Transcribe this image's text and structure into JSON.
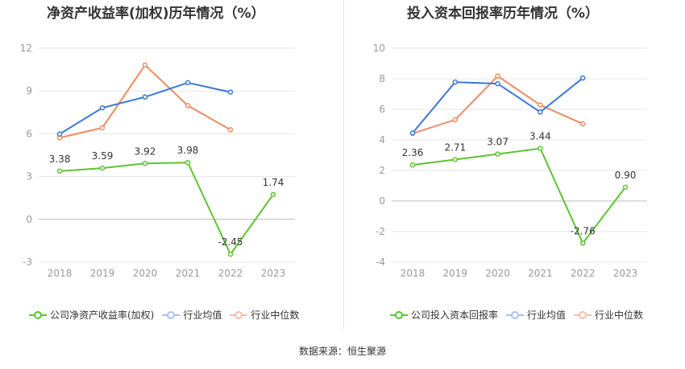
{
  "source": "数据来源：恒生聚源",
  "colors": {
    "company": "#5ec232",
    "avg": "#3b78d8",
    "median": "#ef8a62",
    "grid": "#e6e6e6",
    "axis_text": "#999999",
    "label_text": "#333333"
  },
  "chart_data": [
    {
      "type": "line",
      "title": "净资产收益率(加权)历年情况（%）",
      "categories": [
        "2018",
        "2019",
        "2020",
        "2021",
        "2022",
        "2023"
      ],
      "yticks": [
        "12",
        "9",
        "6",
        "3",
        "0",
        "-3"
      ],
      "ylim": [
        -3,
        12
      ],
      "series": [
        {
          "name": "公司净资产收益率(加权)",
          "values": [
            3.38,
            3.59,
            3.92,
            3.98,
            -2.45,
            1.74
          ],
          "labels": [
            "3.38",
            "3.59",
            "3.92",
            "3.98",
            "-2.45",
            "1.74"
          ]
        },
        {
          "name": "行业均值",
          "values": [
            5.98,
            7.82,
            8.58,
            9.58,
            8.92,
            null
          ]
        },
        {
          "name": "行业中位数",
          "values": [
            5.72,
            6.42,
            10.82,
            7.98,
            6.28,
            null
          ]
        }
      ]
    },
    {
      "type": "line",
      "title": "投入资本回报率历年情况（%）",
      "categories": [
        "2018",
        "2019",
        "2020",
        "2021",
        "2022",
        "2023"
      ],
      "yticks": [
        "10",
        "8",
        "6",
        "4",
        "2",
        "0",
        "-2",
        "-4"
      ],
      "ylim": [
        -4,
        10
      ],
      "series": [
        {
          "name": "公司投入资本回报率",
          "values": [
            2.36,
            2.71,
            3.07,
            3.44,
            -2.76,
            0.9
          ],
          "labels": [
            "2.36",
            "2.71",
            "3.07",
            "3.44",
            "-2.76",
            "0.90"
          ]
        },
        {
          "name": "行业均值",
          "values": [
            4.45,
            7.78,
            7.68,
            5.82,
            8.05,
            null
          ]
        },
        {
          "name": "行业中位数",
          "values": [
            4.42,
            5.32,
            8.18,
            6.28,
            5.05,
            null
          ]
        }
      ]
    }
  ]
}
